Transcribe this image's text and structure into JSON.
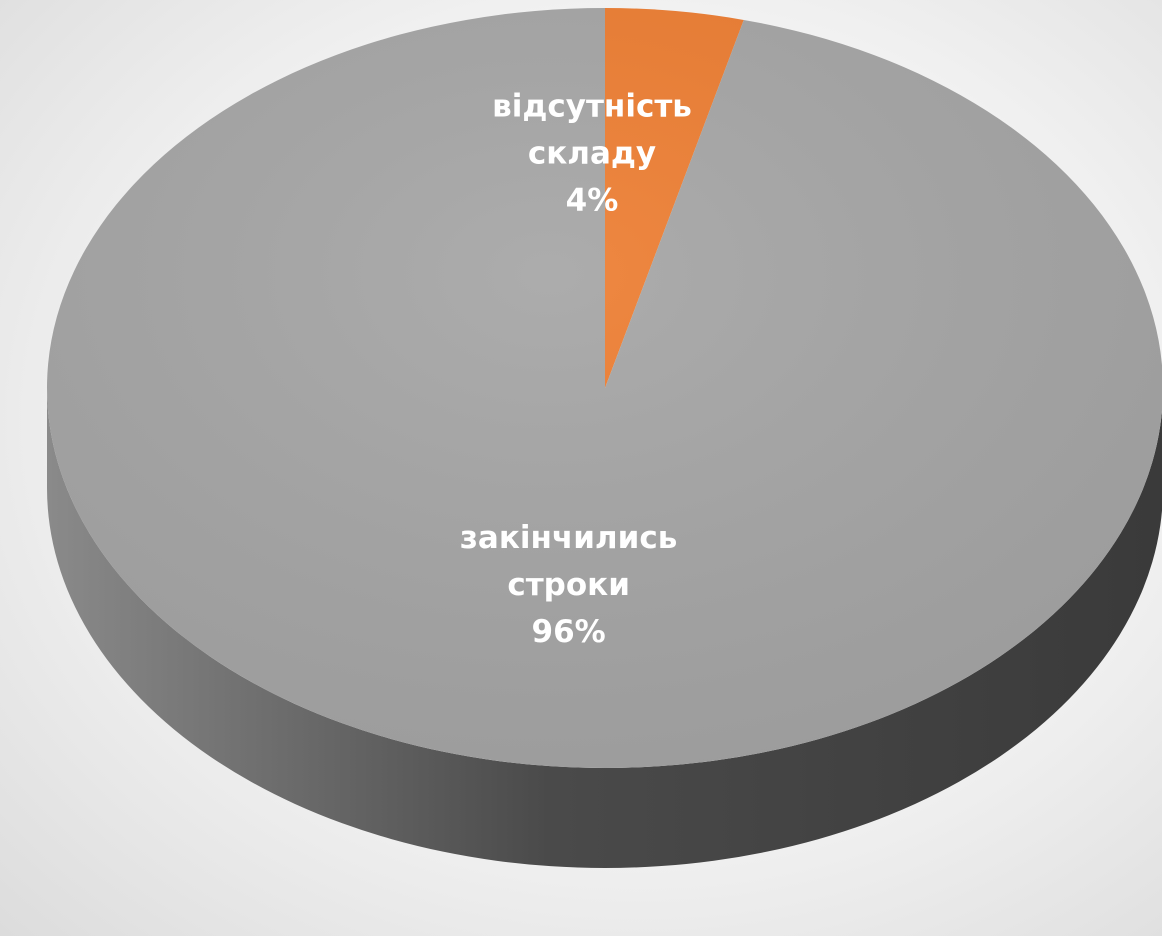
{
  "chart_data": {
    "type": "pie",
    "style": "3d",
    "slices": [
      {
        "label_lines": [
          "відсутність",
          "складу"
        ],
        "value_label": "4%",
        "value": 4,
        "color": "#ed7d31"
      },
      {
        "label_lines": [
          "закінчились",
          "строки"
        ],
        "value_label": "96%",
        "value": 96,
        "color": "#a5a5a5"
      }
    ],
    "side_color": "#5a5a5a",
    "legend": "none"
  }
}
